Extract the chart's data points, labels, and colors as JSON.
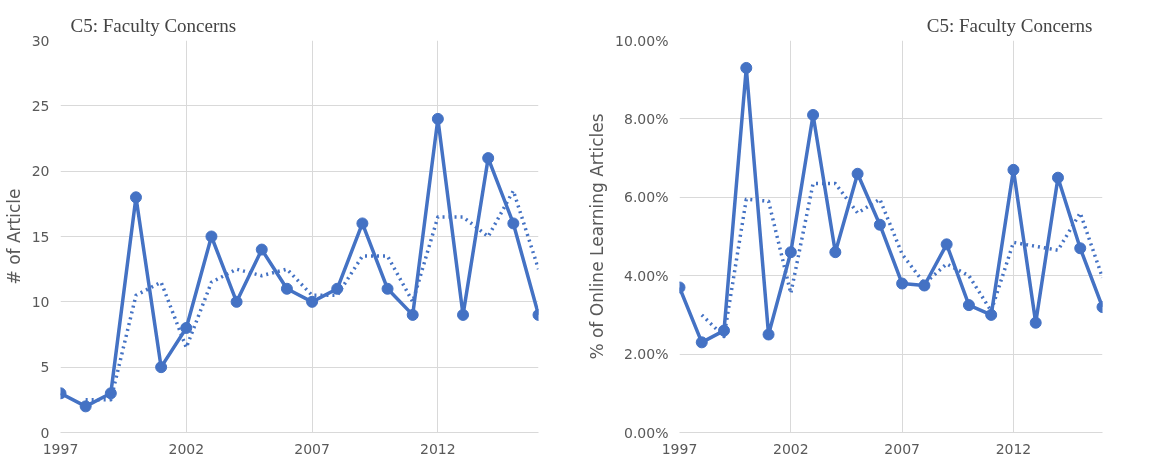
{
  "chart_data": [
    {
      "type": "line",
      "title": "C5: Faculty Concerns",
      "ylabel": "# of Article",
      "x": [
        1997,
        1998,
        1999,
        2000,
        2001,
        2002,
        2003,
        2004,
        2005,
        2006,
        2007,
        2008,
        2009,
        2010,
        2011,
        2012,
        2013,
        2014,
        2015,
        2016
      ],
      "series": [
        {
          "color": "#4472c4",
          "marker": "circle",
          "line_style": "solid",
          "values": [
            3,
            2,
            3,
            18,
            5,
            8,
            15,
            10,
            14,
            11,
            10,
            11,
            16,
            11,
            9,
            24,
            9,
            21,
            16,
            9
          ]
        },
        {
          "color": "#4472c4",
          "marker": "none",
          "line_style": "dotted",
          "x": [
            1998,
            1999,
            2000,
            2001,
            2002,
            2003,
            2004,
            2005,
            2006,
            2007,
            2008,
            2009,
            2010,
            2011,
            2012,
            2013,
            2014,
            2015,
            2016
          ],
          "values": [
            2.5,
            2.5,
            10.5,
            11.5,
            6.5,
            11.5,
            12.5,
            12,
            12.5,
            10.5,
            10.5,
            13.5,
            13.5,
            10,
            16.5,
            16.5,
            15,
            18.5,
            12.5
          ]
        }
      ],
      "xlim": [
        1997,
        2016
      ],
      "xticks": [
        1997,
        2002,
        2007,
        2012
      ],
      "ylim": [
        0,
        30
      ],
      "yticks": [
        0,
        5,
        10,
        15,
        20,
        25,
        30
      ],
      "grid": true
    },
    {
      "type": "line",
      "title": "C5: Faculty Concerns",
      "ylabel": "% of Online Learning Articles",
      "x": [
        1997,
        1998,
        1999,
        2000,
        2001,
        2002,
        2003,
        2004,
        2005,
        2006,
        2007,
        2008,
        2009,
        2010,
        2011,
        2012,
        2013,
        2014,
        2015,
        2016
      ],
      "series": [
        {
          "color": "#4472c4",
          "marker": "circle",
          "line_style": "solid",
          "values": [
            3.7,
            2.3,
            2.6,
            9.3,
            2.5,
            4.6,
            8.1,
            4.6,
            6.6,
            5.3,
            3.8,
            3.75,
            4.8,
            3.25,
            3.0,
            6.7,
            2.8,
            6.5,
            4.7,
            3.2
          ]
        },
        {
          "color": "#4472c4",
          "marker": "none",
          "line_style": "dotted",
          "x": [
            1998,
            1999,
            2000,
            2001,
            2002,
            2003,
            2004,
            2005,
            2006,
            2007,
            2008,
            2009,
            2010,
            2011,
            2012,
            2013,
            2014,
            2015,
            2016
          ],
          "values": [
            3.0,
            2.45,
            5.95,
            5.9,
            3.55,
            6.35,
            6.35,
            5.6,
            5.95,
            4.55,
            3.8,
            4.3,
            4.0,
            3.1,
            4.85,
            4.75,
            4.65,
            5.6,
            3.95
          ]
        }
      ],
      "xlim": [
        1997,
        2016
      ],
      "xticks": [
        1997,
        2002,
        2007,
        2012
      ],
      "ylim": [
        0,
        10
      ],
      "yticks": [
        {
          "value": 0,
          "label": "0.00%"
        },
        {
          "value": 2,
          "label": "2.00%"
        },
        {
          "value": 4,
          "label": "4.00%"
        },
        {
          "value": 6,
          "label": "6.00%"
        },
        {
          "value": 8,
          "label": "8.00%"
        },
        {
          "value": 10,
          "label": "10.00%"
        }
      ],
      "grid": true
    }
  ]
}
